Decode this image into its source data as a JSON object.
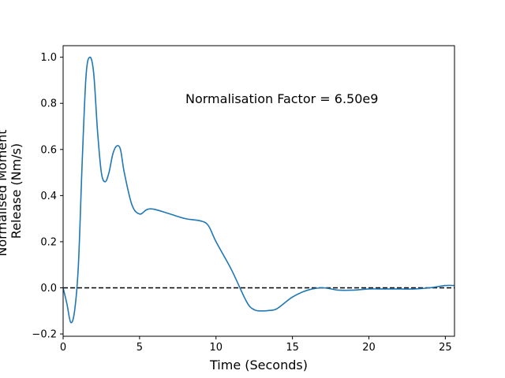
{
  "chart_data": {
    "type": "line",
    "title": "",
    "xlabel": "Time (Seconds)",
    "ylabel_lines": [
      "Normalised Moment",
      "Release (Nm/s)"
    ],
    "xlim": [
      0,
      25.6
    ],
    "ylim": [
      -0.21,
      1.05
    ],
    "xticks": [
      0,
      5,
      10,
      15,
      20,
      25
    ],
    "xtick_labels": [
      "0",
      "5",
      "10",
      "15",
      "20",
      "25"
    ],
    "yticks": [
      -0.2,
      0.0,
      0.2,
      0.4,
      0.6,
      0.8,
      1.0
    ],
    "ytick_labels": [
      "−0.2",
      "0.0",
      "0.2",
      "0.4",
      "0.6",
      "0.8",
      "1.0"
    ],
    "grid": false,
    "annotation": "Normalisation Factor = 6.50e9",
    "reference_line": {
      "y": 0,
      "style": "dashed",
      "color": "#000000"
    },
    "series": [
      {
        "color": "#1f77b4",
        "x": [
          0,
          0.25,
          0.5,
          0.75,
          1.0,
          1.25,
          1.5,
          1.75,
          2.0,
          2.25,
          2.5,
          2.75,
          3.0,
          3.25,
          3.5,
          3.75,
          4.0,
          4.5,
          5.0,
          5.5,
          6.0,
          7.0,
          8.0,
          9.0,
          9.5,
          10.0,
          11.0,
          12.0,
          12.5,
          13.0,
          13.5,
          14.0,
          15.0,
          16.0,
          17.0,
          18.0,
          19.0,
          20.0,
          21.0,
          22.0,
          23.0,
          24.0,
          25.0,
          25.6
        ],
        "y": [
          0.0,
          -0.07,
          -0.15,
          -0.1,
          0.1,
          0.55,
          0.92,
          1.0,
          0.93,
          0.68,
          0.5,
          0.46,
          0.5,
          0.58,
          0.615,
          0.6,
          0.5,
          0.36,
          0.32,
          0.34,
          0.34,
          0.32,
          0.3,
          0.29,
          0.27,
          0.2,
          0.08,
          -0.06,
          -0.095,
          -0.1,
          -0.098,
          -0.09,
          -0.04,
          -0.01,
          0.0,
          -0.01,
          -0.01,
          -0.005,
          -0.005,
          -0.005,
          -0.005,
          0.0,
          0.01,
          0.01
        ]
      }
    ]
  },
  "colors": {
    "series": "#1f77b4",
    "axes": "#000000",
    "background": "#ffffff"
  }
}
